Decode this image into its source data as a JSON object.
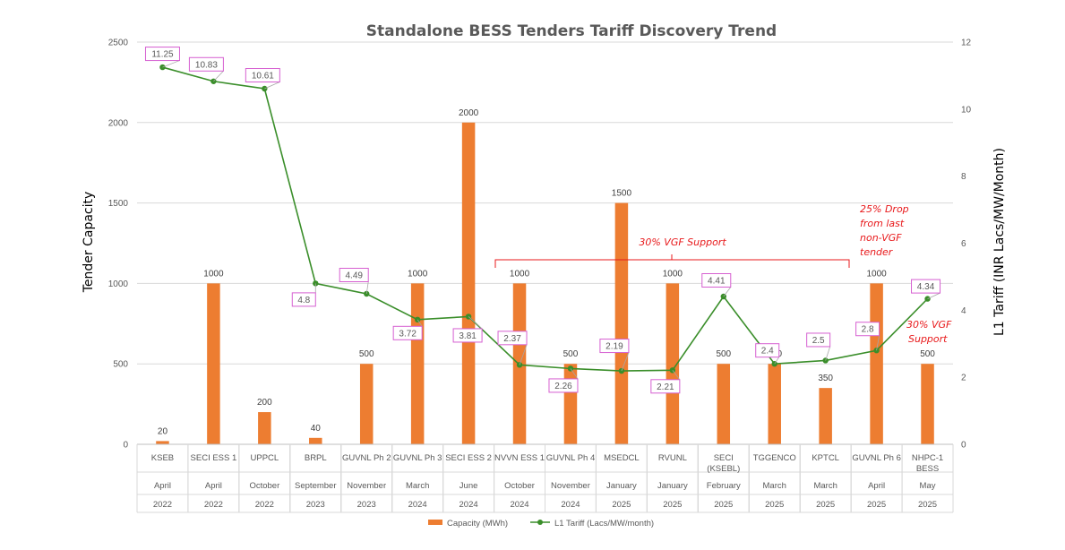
{
  "chart_data": {
    "type": "bar+line",
    "title": "Standalone BESS Tenders Tariff Discovery Trend",
    "ylabel_left": "Tender Capacity",
    "ylabel_right": "L1 Tariff (INR Lacs/MW/Month)",
    "ylim_left": [
      0,
      2500
    ],
    "ylim_right": [
      0,
      12
    ],
    "yticks_left": [
      "0",
      "500",
      "1000",
      "1500",
      "2000",
      "2500"
    ],
    "yticks_right": [
      "0",
      "2",
      "4",
      "6",
      "8",
      "10",
      "12"
    ],
    "categories": [
      {
        "name": [
          "KSEB"
        ],
        "month": "April",
        "year": "2022"
      },
      {
        "name": [
          "SECI ESS 1"
        ],
        "month": "April",
        "year": "2022"
      },
      {
        "name": [
          "UPPCL"
        ],
        "month": "October",
        "year": "2022"
      },
      {
        "name": [
          "BRPL"
        ],
        "month": "September",
        "year": "2023"
      },
      {
        "name": [
          "GUVNL Ph 2"
        ],
        "month": "November",
        "year": "2023"
      },
      {
        "name": [
          "GUVNL Ph 3"
        ],
        "month": "March",
        "year": "2024"
      },
      {
        "name": [
          "SECI ESS 2"
        ],
        "month": "June",
        "year": "2024"
      },
      {
        "name": [
          "NVVN ESS 1"
        ],
        "month": "October",
        "year": "2024"
      },
      {
        "name": [
          "GUVNL Ph 4"
        ],
        "month": "November",
        "year": "2024"
      },
      {
        "name": [
          "MSEDCL"
        ],
        "month": "January",
        "year": "2025"
      },
      {
        "name": [
          "RVUNL"
        ],
        "month": "January",
        "year": "2025"
      },
      {
        "name": [
          "SECI",
          "(KSEBL)"
        ],
        "month": "February",
        "year": "2025"
      },
      {
        "name": [
          "TGGENCO"
        ],
        "month": "March",
        "year": "2025"
      },
      {
        "name": [
          "KPTCL"
        ],
        "month": "March",
        "year": "2025"
      },
      {
        "name": [
          "GUVNL Ph 6"
        ],
        "month": "April",
        "year": "2025"
      },
      {
        "name": [
          "NHPC-1",
          "BESS"
        ],
        "month": "May",
        "year": "2025"
      }
    ],
    "series": [
      {
        "name": "Capacity (MWh)",
        "type": "bar",
        "axis": "left",
        "color": "#ed7d31",
        "values": [
          20,
          1000,
          200,
          40,
          500,
          1000,
          2000,
          1000,
          500,
          1500,
          1000,
          500,
          500,
          350,
          1000,
          500
        ]
      },
      {
        "name": "L1 Tariff (Lacs/MW/month)",
        "type": "line",
        "axis": "right",
        "color": "#3a8e2a",
        "values": [
          11.25,
          10.83,
          10.61,
          4.8,
          4.49,
          3.72,
          3.81,
          2.37,
          2.26,
          2.19,
          2.21,
          4.41,
          2.4,
          2.5,
          2.8,
          4.34
        ]
      }
    ],
    "annotations": {
      "vgf_bracket": "30% VGF Support",
      "drop_note": [
        "25% Drop",
        "from last",
        "non-VGF",
        "tender"
      ],
      "vgf_note": [
        "30% VGF",
        "Support"
      ]
    },
    "legend_position": "bottom",
    "grid": true,
    "colors": {
      "bar": "#ed7d31",
      "line": "#3a8e2a",
      "label_border": "#d65fd1",
      "annotation": "#e8191b"
    }
  }
}
